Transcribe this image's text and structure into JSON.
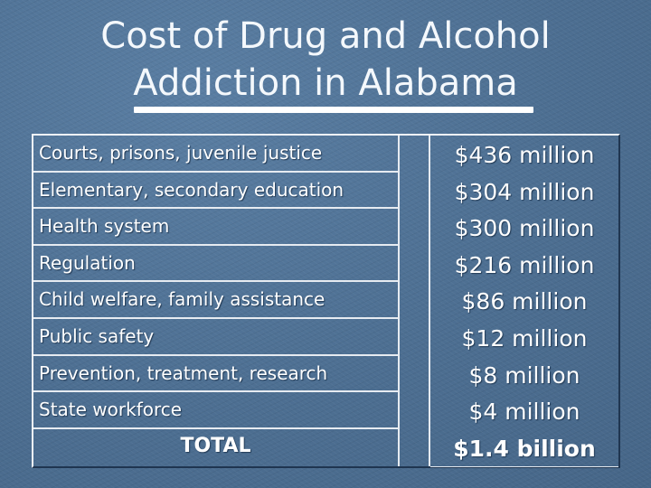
{
  "title": {
    "line1": "Cost of Drug and Alcohol",
    "line2": "Addiction in Alabama"
  },
  "table": {
    "rows": [
      {
        "label": "Courts, prisons, juvenile justice",
        "value": "$436 million"
      },
      {
        "label": "Elementary, secondary education",
        "value": "$304 million"
      },
      {
        "label": "Health system",
        "value": "$300 million"
      },
      {
        "label": "Regulation",
        "value": "$216 million"
      },
      {
        "label": "Child welfare, family assistance",
        "value": "$86 million"
      },
      {
        "label": "Public safety",
        "value": "$12 million"
      },
      {
        "label": "Prevention, treatment, research",
        "value": "$8 million"
      },
      {
        "label": "State workforce",
        "value": "$4 million"
      }
    ],
    "total": {
      "label": "TOTAL",
      "value": "$1.4 billion"
    }
  },
  "colors": {
    "background": "#4d6f92",
    "text": "#ffffff",
    "rule": "#ffffff"
  }
}
